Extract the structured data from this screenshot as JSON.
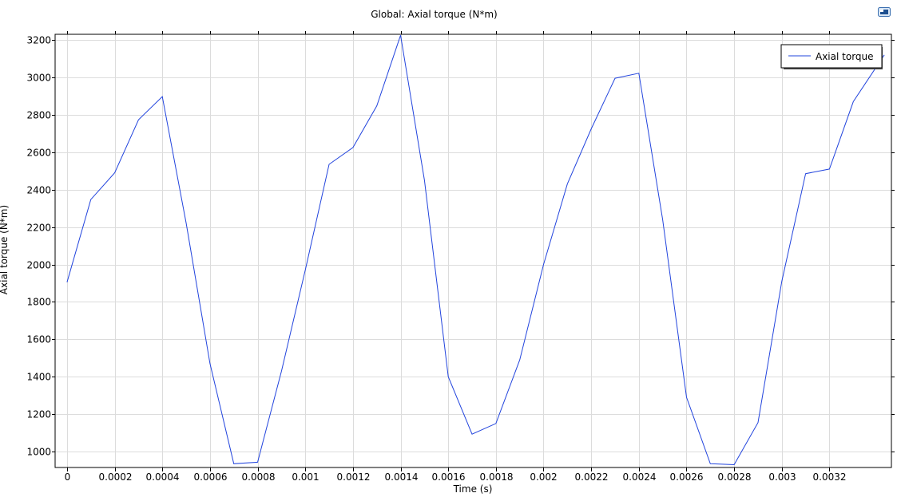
{
  "chart_data": {
    "type": "line",
    "title": "Global: Axial torque (N*m)",
    "xlabel": "Time (s)",
    "ylabel": "Axial torque (N*m)",
    "xlim": [
      -5e-05,
      0.00346
    ],
    "ylim": [
      915,
      3230
    ],
    "x_ticks": [
      0,
      0.0002,
      0.0004,
      0.0006,
      0.0008,
      0.001,
      0.0012,
      0.0014,
      0.0016,
      0.0018,
      0.002,
      0.0022,
      0.0024,
      0.0026,
      0.0028,
      0.003,
      0.0032
    ],
    "x_tick_labels": [
      "0",
      "0.0002",
      "0.0004",
      "0.0006",
      "0.0008",
      "0.001",
      "0.0012",
      "0.0014",
      "0.0016",
      "0.0018",
      "0.002",
      "0.0022",
      "0.0024",
      "0.0026",
      "0.0028",
      "0.003",
      "0.0032"
    ],
    "y_ticks": [
      1000,
      1200,
      1400,
      1600,
      1800,
      2000,
      2200,
      2400,
      2600,
      2800,
      3000,
      3200
    ],
    "y_tick_labels": [
      "1000",
      "1200",
      "1400",
      "1600",
      "1800",
      "2000",
      "2200",
      "2400",
      "2600",
      "2800",
      "3000",
      "3200"
    ],
    "grid": true,
    "legend_position": "top-right",
    "series": [
      {
        "name": "Axial torque",
        "color": "#2244dd",
        "x": [
          0,
          0.0001,
          0.0002,
          0.0003,
          0.0004,
          0.0005,
          0.0006,
          0.0007,
          0.0008,
          0.0009,
          0.001,
          0.0011,
          0.0012,
          0.0013,
          0.0014,
          0.0015,
          0.0016,
          0.0017,
          0.0018,
          0.0019,
          0.002,
          0.0021,
          0.0022,
          0.0023,
          0.0024,
          0.0025,
          0.0026,
          0.0027,
          0.0028,
          0.0029,
          0.003,
          0.0031,
          0.0032,
          0.0033,
          0.00343
        ],
        "values": [
          1905,
          2347,
          2490,
          2773,
          2897,
          2220,
          1470,
          935,
          943,
          1430,
          1970,
          2535,
          2625,
          2847,
          3225,
          2450,
          1400,
          1093,
          1150,
          1490,
          2000,
          2430,
          2725,
          2995,
          3022,
          2240,
          1290,
          935,
          930,
          1155,
          1910,
          2485,
          2510,
          2870,
          3120
        ]
      }
    ]
  },
  "icons": {
    "corner": "display-icon"
  }
}
